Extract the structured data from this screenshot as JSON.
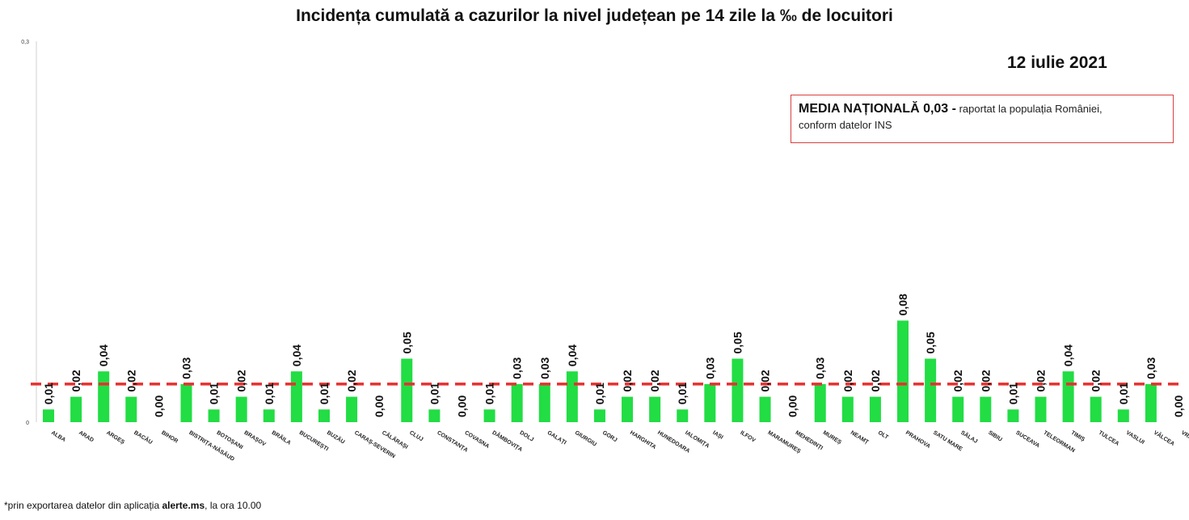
{
  "title": "Incidența cumulată a cazurilor la nivel județean pe 14 zile  la ‰ de locuitori",
  "date": "12 iulie 2021",
  "media_box": {
    "strong": "MEDIA NAȚIONALĂ 0,03 -",
    "line1_rest": " raportat la populația României,",
    "line2": "conform datelor INS"
  },
  "footnote": {
    "prefix": "*prin exportarea datelor din aplicația ",
    "bold": "alerte.ms",
    "suffix": ", la ora 10.00"
  },
  "chart_data": {
    "type": "bar",
    "title": "Incidența cumulată a cazurilor la nivel județean pe 14 zile  la ‰ de locuitori",
    "xlabel": "",
    "ylabel": "",
    "ylim": [
      0,
      0.3
    ],
    "ytick_labels": [
      "0",
      "0,3"
    ],
    "ytick_values": [
      0,
      0.3
    ],
    "grid": false,
    "bar_color": "#22dd44",
    "reference_line": {
      "value": 0.03,
      "color": "#e53030",
      "style": "dashed"
    },
    "categories": [
      "ALBA",
      "ARAD",
      "ARGEȘ",
      "BACĂU",
      "BIHOR",
      "BISTRIȚA-NĂSĂUD",
      "BOTOȘANI",
      "BRAȘOV",
      "BRĂILA",
      "BUCUREȘTI",
      "BUZĂU",
      "CARAȘ-SEVERIN",
      "CĂLĂRAȘI",
      "CLUJ",
      "CONSTANȚA",
      "COVASNA",
      "DÂMBOVIȚA",
      "DOLJ",
      "GALAȚI",
      "GIURGIU",
      "GORJ",
      "HARGHITA",
      "HUNEDOARA",
      "IALOMIȚA",
      "IAȘI",
      "ILFOV",
      "MARAMUREȘ",
      "MEHEDINȚI",
      "MUREȘ",
      "NEAMȚ",
      "OLT",
      "PRAHOVA",
      "SATU MARE",
      "SĂLAJ",
      "SIBIU",
      "SUCEAVA",
      "TELEORMAN",
      "TIMIȘ",
      "TULCEA",
      "VASLUI",
      "VÂLCEA",
      "VRANCEA"
    ],
    "values": [
      0.01,
      0.02,
      0.04,
      0.02,
      0.0,
      0.03,
      0.01,
      0.02,
      0.01,
      0.04,
      0.01,
      0.02,
      0.0,
      0.05,
      0.01,
      0.0,
      0.01,
      0.03,
      0.03,
      0.04,
      0.01,
      0.02,
      0.02,
      0.01,
      0.03,
      0.05,
      0.02,
      0.0,
      0.03,
      0.02,
      0.02,
      0.08,
      0.05,
      0.02,
      0.02,
      0.01,
      0.02,
      0.04,
      0.02,
      0.01,
      0.03,
      0.0
    ],
    "data_labels": [
      "0,01",
      "0,02",
      "0,04",
      "0,02",
      "0,00",
      "0,03",
      "0,01",
      "0,02",
      "0,01",
      "0,04",
      "0,01",
      "0,02",
      "0,00",
      "0,05",
      "0,01",
      "0,00",
      "0,01",
      "0,03",
      "0,03",
      "0,04",
      "0,01",
      "0,02",
      "0,02",
      "0,01",
      "0,03",
      "0,05",
      "0,02",
      "0,00",
      "0,03",
      "0,02",
      "0,02",
      "0,08",
      "0,05",
      "0,02",
      "0,02",
      "0,01",
      "0,02",
      "0,04",
      "0,02",
      "0,01",
      "0,03",
      "0,00"
    ]
  }
}
